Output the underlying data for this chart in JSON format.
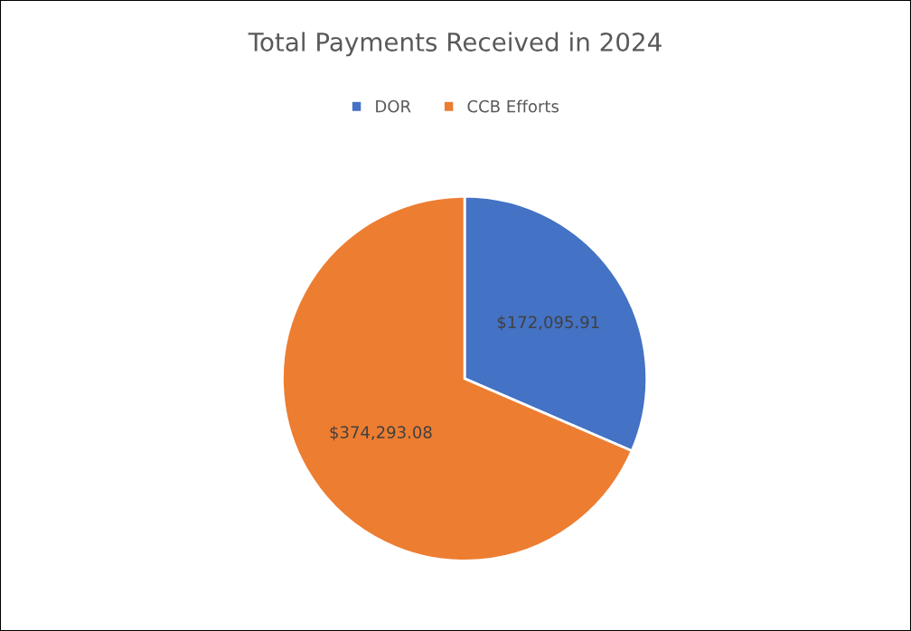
{
  "chart_data": {
    "type": "pie",
    "title": "Total Payments Received in 2024",
    "categories": [
      "DOR",
      "CCB Efforts"
    ],
    "values": [
      172095.91,
      374293.08
    ],
    "colors": [
      "#4472c4",
      "#ed7d31"
    ],
    "value_labels": [
      "$172,095.91",
      "$374,293.08"
    ],
    "legend": "top"
  }
}
